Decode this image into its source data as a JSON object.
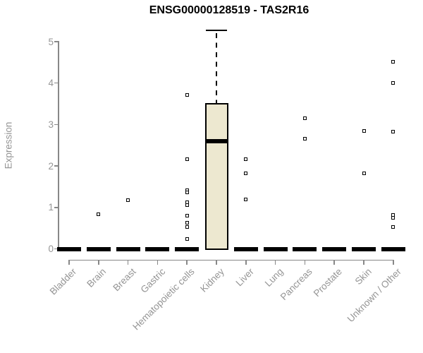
{
  "chart_data": {
    "type": "boxplot",
    "title": "ENSG00000128519 - TAS2R16",
    "xlabel": "",
    "ylabel": "Expression",
    "ylim": [
      0,
      5.4
    ],
    "yticks": [
      0,
      1,
      2,
      3,
      4,
      5
    ],
    "grid": false,
    "legend": "none",
    "categories": [
      "Bladder",
      "Brain",
      "Breast",
      "Gastric",
      "Hematopoietic cells",
      "Kidney",
      "Liver",
      "Lung",
      "Pancreas",
      "Prostate",
      "Skin",
      "Unknown / Other"
    ],
    "boxes": [
      {
        "category": "Bladder",
        "q1": 0,
        "median": 0,
        "q3": 0,
        "whisker_low": 0,
        "whisker_high": 0,
        "outliers": []
      },
      {
        "category": "Brain",
        "q1": 0,
        "median": 0,
        "q3": 0,
        "whisker_low": 0,
        "whisker_high": 0,
        "outliers": [
          0.84
        ]
      },
      {
        "category": "Breast",
        "q1": 0,
        "median": 0,
        "q3": 0,
        "whisker_low": 0,
        "whisker_high": 0,
        "outliers": [
          1.17
        ]
      },
      {
        "category": "Gastric",
        "q1": 0,
        "median": 0,
        "q3": 0,
        "whisker_low": 0,
        "whisker_high": 0,
        "outliers": []
      },
      {
        "category": "Hematopoietic cells",
        "q1": 0,
        "median": 0,
        "q3": 0,
        "whisker_low": 0,
        "whisker_high": 0,
        "outliers": [
          3.72,
          2.16,
          1.42,
          1.36,
          1.12,
          1.06,
          0.8,
          0.63,
          0.52,
          0.23
        ]
      },
      {
        "category": "Kidney",
        "q1": 0,
        "median": 2.6,
        "q3": 3.52,
        "whisker_low": 0,
        "whisker_high": 5.27,
        "outliers": []
      },
      {
        "category": "Liver",
        "q1": 0,
        "median": 0,
        "q3": 0,
        "whisker_low": 0,
        "whisker_high": 0,
        "outliers": [
          2.17,
          1.82,
          1.19
        ]
      },
      {
        "category": "Lung",
        "q1": 0,
        "median": 0,
        "q3": 0,
        "whisker_low": 0,
        "whisker_high": 0,
        "outliers": []
      },
      {
        "category": "Pancreas",
        "q1": 0,
        "median": 0,
        "q3": 0,
        "whisker_low": 0,
        "whisker_high": 0,
        "outliers": [
          3.16,
          2.65
        ]
      },
      {
        "category": "Prostate",
        "q1": 0,
        "median": 0,
        "q3": 0,
        "whisker_low": 0,
        "whisker_high": 0,
        "outliers": []
      },
      {
        "category": "Skin",
        "q1": 0,
        "median": 0,
        "q3": 0,
        "whisker_low": 0,
        "whisker_high": 0,
        "outliers": [
          2.85,
          1.82
        ]
      },
      {
        "category": "Unknown / Other",
        "q1": 0,
        "median": 0,
        "q3": 0,
        "whisker_low": 0,
        "whisker_high": 0,
        "outliers": [
          4.51,
          4.01,
          2.83,
          0.81,
          0.75,
          0.52
        ]
      }
    ],
    "colors": {
      "box_fill": "#EDE8D0",
      "box_border": "#000000",
      "median": "#000000",
      "whisker": "#000000",
      "outlier_border": "#000000",
      "outlier_fill": "#FFFFFF",
      "axis": "#888888",
      "tick_text": "#959595",
      "title_text": "#000000",
      "background": "#FFFFFF"
    }
  }
}
